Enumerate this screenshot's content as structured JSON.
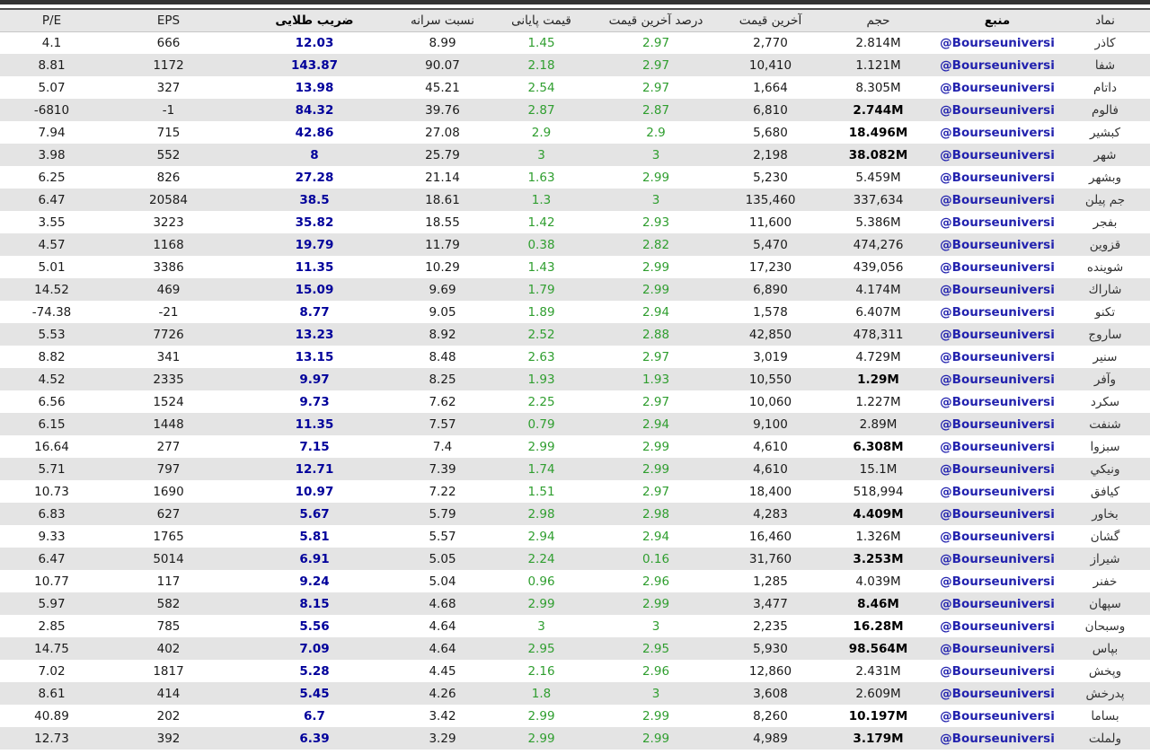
{
  "colors": {
    "positive_green": "#2f9e2f",
    "golden_ratio_navy": "#00009b",
    "source_link_blue": "#2222ae",
    "stripe_gray": "#e4e4e4",
    "header_bg": "#e7e7e7",
    "top_bar": "#333333"
  },
  "table": {
    "headers": [
      "P/E",
      "EPS",
      "ضریب طلایی",
      "نسبت سرانه",
      "قیمت پایانی",
      "درصد آخرین قیمت",
      "آخرین قیمت",
      "حجم",
      "منبع",
      "نماد"
    ],
    "column_keys": [
      "pe",
      "eps",
      "golden_ratio",
      "per_capita_ratio",
      "final_price",
      "last_price_pct",
      "last_price",
      "volume",
      "source",
      "symbol"
    ],
    "bold_volume_rows": [
      3,
      4,
      5,
      15,
      18,
      21,
      23,
      25,
      26,
      27,
      30,
      31
    ],
    "rows": [
      [
        "4.1",
        "666",
        "12.03",
        "8.99",
        "1.45",
        "2.97",
        "2,770",
        "2.814M",
        "@Bourseuniversi",
        "كاذر"
      ],
      [
        "8.81",
        "1172",
        "143.87",
        "90.07",
        "2.18",
        "2.97",
        "10,410",
        "1.121M",
        "@Bourseuniversi",
        "شفا"
      ],
      [
        "5.07",
        "327",
        "13.98",
        "45.21",
        "2.54",
        "2.97",
        "1,664",
        "8.305M",
        "@Bourseuniversi",
        "داتام"
      ],
      [
        "-6810",
        "-1",
        "84.32",
        "39.76",
        "2.87",
        "2.87",
        "6,810",
        "2.744M",
        "@Bourseuniversi",
        "فالوم"
      ],
      [
        "7.94",
        "715",
        "42.86",
        "27.08",
        "2.9",
        "2.9",
        "5,680",
        "18.496M",
        "@Bourseuniversi",
        "كبشير"
      ],
      [
        "3.98",
        "552",
        "8",
        "25.79",
        "3",
        "3",
        "2,198",
        "38.082M",
        "@Bourseuniversi",
        "شهر"
      ],
      [
        "6.25",
        "826",
        "27.28",
        "21.14",
        "1.63",
        "2.99",
        "5,230",
        "5.459M",
        "@Bourseuniversi",
        "وبشهر"
      ],
      [
        "6.47",
        "20584",
        "38.5",
        "18.61",
        "1.3",
        "3",
        "135,460",
        "337,634",
        "@Bourseuniversi",
        "جم پيلن"
      ],
      [
        "3.55",
        "3223",
        "35.82",
        "18.55",
        "1.42",
        "2.93",
        "11,600",
        "5.386M",
        "@Bourseuniversi",
        "بفجر"
      ],
      [
        "4.57",
        "1168",
        "19.79",
        "11.79",
        "0.38",
        "2.82",
        "5,470",
        "474,276",
        "@Bourseuniversi",
        "قزوين"
      ],
      [
        "5.01",
        "3386",
        "11.35",
        "10.29",
        "1.43",
        "2.99",
        "17,230",
        "439,056",
        "@Bourseuniversi",
        "شوينده"
      ],
      [
        "14.52",
        "469",
        "15.09",
        "9.69",
        "1.79",
        "2.99",
        "6,890",
        "4.174M",
        "@Bourseuniversi",
        "شاراك"
      ],
      [
        "-74.38",
        "-21",
        "8.77",
        "9.05",
        "1.89",
        "2.94",
        "1,578",
        "6.407M",
        "@Bourseuniversi",
        "تكنو"
      ],
      [
        "5.53",
        "7726",
        "13.23",
        "8.92",
        "2.52",
        "2.88",
        "42,850",
        "478,311",
        "@Bourseuniversi",
        "ساروج"
      ],
      [
        "8.82",
        "341",
        "13.15",
        "8.48",
        "2.63",
        "2.97",
        "3,019",
        "4.729M",
        "@Bourseuniversi",
        "سنير"
      ],
      [
        "4.52",
        "2335",
        "9.97",
        "8.25",
        "1.93",
        "1.93",
        "10,550",
        "1.29M",
        "@Bourseuniversi",
        "وآفر"
      ],
      [
        "6.56",
        "1524",
        "9.73",
        "7.62",
        "2.25",
        "2.97",
        "10,060",
        "1.227M",
        "@Bourseuniversi",
        "سكرد"
      ],
      [
        "6.15",
        "1448",
        "11.35",
        "7.57",
        "0.79",
        "2.94",
        "9,100",
        "2.89M",
        "@Bourseuniversi",
        "شنفت"
      ],
      [
        "16.64",
        "277",
        "7.15",
        "7.4",
        "2.99",
        "2.99",
        "4,610",
        "6.308M",
        "@Bourseuniversi",
        "سبزوا"
      ],
      [
        "5.71",
        "797",
        "12.71",
        "7.39",
        "1.74",
        "2.99",
        "4,610",
        "15.1M",
        "@Bourseuniversi",
        "ونيكي"
      ],
      [
        "10.73",
        "1690",
        "10.97",
        "7.22",
        "1.51",
        "2.97",
        "18,400",
        "518,994",
        "@Bourseuniversi",
        "كيافق"
      ],
      [
        "6.83",
        "627",
        "5.67",
        "5.79",
        "2.98",
        "2.98",
        "4,283",
        "4.409M",
        "@Bourseuniversi",
        "بخاور"
      ],
      [
        "9.33",
        "1765",
        "5.81",
        "5.57",
        "2.94",
        "2.94",
        "16,460",
        "1.326M",
        "@Bourseuniversi",
        "گشان"
      ],
      [
        "6.47",
        "5014",
        "6.91",
        "5.05",
        "2.24",
        "0.16",
        "31,760",
        "3.253M",
        "@Bourseuniversi",
        "شيراز"
      ],
      [
        "10.77",
        "117",
        "9.24",
        "5.04",
        "0.96",
        "2.96",
        "1,285",
        "4.039M",
        "@Bourseuniversi",
        "خفنر"
      ],
      [
        "5.97",
        "582",
        "8.15",
        "4.68",
        "2.99",
        "2.99",
        "3,477",
        "8.46M",
        "@Bourseuniversi",
        "سپهان"
      ],
      [
        "2.85",
        "785",
        "5.56",
        "4.64",
        "3",
        "3",
        "2,235",
        "16.28M",
        "@Bourseuniversi",
        "وسبحان"
      ],
      [
        "14.75",
        "402",
        "7.09",
        "4.64",
        "2.95",
        "2.95",
        "5,930",
        "98.564M",
        "@Bourseuniversi",
        "بپاس"
      ],
      [
        "7.02",
        "1817",
        "5.28",
        "4.45",
        "2.16",
        "2.96",
        "12,860",
        "2.431M",
        "@Bourseuniversi",
        "وپخش"
      ],
      [
        "8.61",
        "414",
        "5.45",
        "4.26",
        "1.8",
        "3",
        "3,608",
        "2.609M",
        "@Bourseuniversi",
        "پدرخش"
      ],
      [
        "40.89",
        "202",
        "6.7",
        "3.42",
        "2.99",
        "2.99",
        "8,260",
        "10.197M",
        "@Bourseuniversi",
        "بساما"
      ],
      [
        "12.73",
        "392",
        "6.39",
        "3.29",
        "2.99",
        "2.99",
        "4,989",
        "3.179M",
        "@Bourseuniversi",
        "ولملت"
      ]
    ]
  }
}
